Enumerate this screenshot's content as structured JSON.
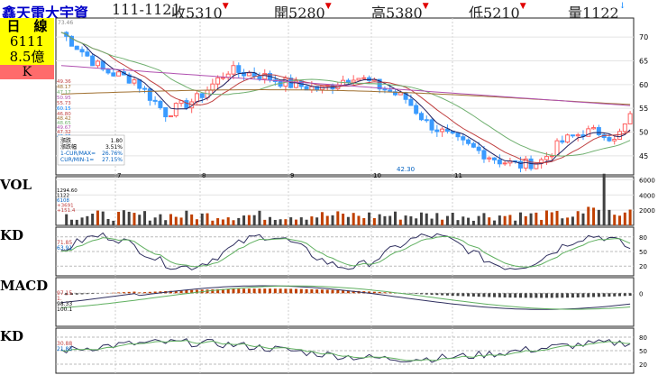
{
  "header": {
    "name": "鑫天雷大宇資",
    "period": "111-1121",
    "close_label": "收",
    "close": "5310",
    "open_label": "開",
    "open": "5280",
    "high_label": "高",
    "high": "5380",
    "low_label": "低",
    "low": "5210",
    "volume_label": "量",
    "volume": "1122"
  },
  "side": {
    "line1": "日　線",
    "code": "6111",
    "amount": "8.5億",
    "k_label": "K"
  },
  "colors": {
    "up": "#d04000",
    "down": "#0080ff",
    "ma_pink": "#b050b0",
    "ma_brown": "#a07030",
    "ma_green": "#70b070",
    "ma_red": "#c04040",
    "line_dark": "#202060"
  },
  "chart_data": [
    {
      "type": "candlestick",
      "panel": "price",
      "yticks": [
        45,
        50,
        55,
        60,
        65,
        70
      ],
      "ylim": [
        41,
        74
      ],
      "top_label": "73.46",
      "month_labels": [
        "7",
        "8",
        "9",
        "10",
        "11"
      ],
      "annotation_low": "42.30",
      "ma_values": [
        "49.36",
        "48.17",
        "47.17",
        "50.95",
        "55.73",
        "60.15"
      ],
      "ma_values2": [
        "46.80",
        "48.42",
        "48.65",
        "49.67",
        "47.32",
        "48.65"
      ],
      "info_box": [
        {
          "label": "漲跌",
          "value": "1.80"
        },
        {
          "label": "漲跌幅",
          "value": "3.51%"
        },
        {
          "label": "1-CUR/MAX=",
          "value": "26.76%"
        },
        {
          "label": "CUR/MIN-1=",
          "value": "27.15%"
        }
      ]
    },
    {
      "type": "bar",
      "panel": "VOL",
      "label": "VOL",
      "yticks": [
        2000,
        4000,
        6000
      ],
      "values_text": [
        "1294.60",
        "1122",
        "6108",
        "+3691",
        "+151.4"
      ]
    },
    {
      "type": "line",
      "panel": "KD",
      "label": "KD",
      "yticks": [
        20,
        50,
        80
      ],
      "values_text": [
        "71.85",
        "63.91"
      ]
    },
    {
      "type": "bar",
      "panel": "MACD",
      "label": "MACD",
      "yticks": [
        0
      ],
      "values_text": [
        "97.15",
        "1.",
        "98.33",
        "100.1"
      ]
    },
    {
      "type": "line",
      "panel": "KD2",
      "label": "KD",
      "yticks": [
        20,
        50,
        80
      ],
      "values_text": [
        "30.88",
        "21.83"
      ]
    }
  ]
}
